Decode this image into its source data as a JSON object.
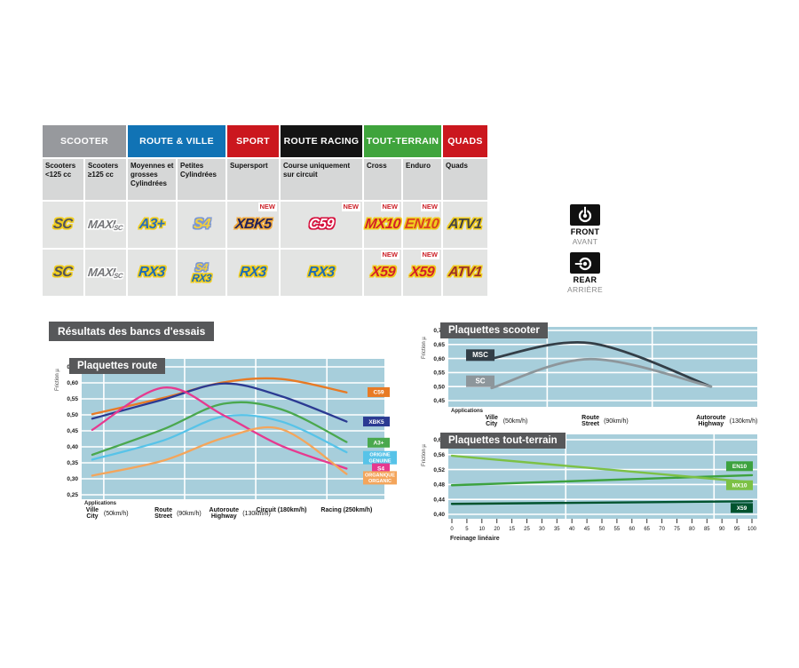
{
  "section_title": "Résultats des bancs d'essais",
  "table": {
    "new_label": "NEW",
    "categories": [
      {
        "label": "SCOOTER",
        "color": "#97999d",
        "span": 2
      },
      {
        "label": "ROUTE & VILLE",
        "color": "#1173b5",
        "span": 2
      },
      {
        "label": "SPORT",
        "color": "#cb171e",
        "span": 1
      },
      {
        "label": "ROUTE RACING",
        "color": "#141414",
        "span": 1
      },
      {
        "label": "TOUT-TERRAIN",
        "color": "#3fa43c",
        "span": 2
      },
      {
        "label": "QUADS",
        "color": "#cb171e",
        "span": 1
      }
    ],
    "subheaders": [
      "Scooters <125 cc",
      "Scooters ≥125 cc",
      "Moyennes et grosses Cylindrées",
      "Petites Cylindrées",
      "Supersport",
      "Course uniquement sur circuit",
      "Cross",
      "Enduro",
      "Quads"
    ],
    "logos": {
      "SC": {
        "text": "SC",
        "cls": "c-sc ol-y"
      },
      "MAXISC": {
        "text": "MAXI",
        "sub": "SC",
        "cls": "c-maxi ol-w"
      },
      "A3": {
        "text": "A3+",
        "cls": "c-a3 ol-y"
      },
      "S4": {
        "text": "S4",
        "cls": "c-s4 ol-b"
      },
      "XBK5": {
        "text": "XBK5",
        "cls": "c-xbk5 ol-o"
      },
      "C59": {
        "text": "C59",
        "cls": "c-c59 ol-r"
      },
      "MX10": {
        "text": "MX10",
        "cls": "c-mx10 ol-y"
      },
      "EN10": {
        "text": "EN10",
        "cls": "c-en10 ol-y"
      },
      "ATV1": {
        "text": "ATV1",
        "cls": "c-atv1 ol-y"
      },
      "ATV1R": {
        "text": "ATV1",
        "cls": "c-atv1r ol-y"
      },
      "RX3": {
        "text": "RX3",
        "cls": "c-rx3 ol-y"
      },
      "X59": {
        "text": "X59",
        "cls": "c-x59 ol-y"
      }
    },
    "rows": [
      {
        "side": "front",
        "cells": [
          {
            "logos": [
              "SC"
            ]
          },
          {
            "logos": [
              "MAXISC"
            ]
          },
          {
            "logos": [
              "A3"
            ]
          },
          {
            "logos": [
              "S4"
            ]
          },
          {
            "logos": [
              "XBK5"
            ],
            "new": true
          },
          {
            "logos": [
              "C59"
            ],
            "new": true
          },
          {
            "logos": [
              "MX10"
            ],
            "new": true
          },
          {
            "logos": [
              "EN10"
            ],
            "new": true
          },
          {
            "logos": [
              "ATV1"
            ]
          }
        ]
      },
      {
        "side": "rear",
        "cells": [
          {
            "logos": [
              "SC"
            ]
          },
          {
            "logos": [
              "MAXISC"
            ]
          },
          {
            "logos": [
              "RX3"
            ]
          },
          {
            "logos": [
              "S4",
              "RX3"
            ]
          },
          {
            "logos": [
              "RX3"
            ]
          },
          {
            "logos": [
              "RX3"
            ]
          },
          {
            "logos": [
              "X59"
            ],
            "new": true
          },
          {
            "logos": [
              "X59"
            ],
            "new": true
          },
          {
            "logos": [
              "ATV1R"
            ]
          }
        ]
      }
    ],
    "sides": {
      "front": {
        "en": "FRONT",
        "fr": "AVANT"
      },
      "rear": {
        "en": "REAR",
        "fr": "ARRIÈRE"
      }
    }
  },
  "chart_data": [
    {
      "id": "route",
      "type": "line",
      "title": "Plaquettes route",
      "ylabel": "Friction µ",
      "x_note": "Applications",
      "ylim": [
        0.25,
        0.65
      ],
      "yticks": [
        "0,65",
        "0,60",
        "0,55",
        "0,50",
        "0,45",
        "0,40",
        "0,35",
        "0,30",
        "0,25"
      ],
      "categories": [
        {
          "l1": "Ville",
          "l2": "City",
          "speed": "(50km/h)"
        },
        {
          "l1": "Route",
          "l2": "Street",
          "speed": "(90km/h)"
        },
        {
          "l1": "Autoroute",
          "l2": "Highway",
          "speed": "(130km/h)"
        },
        {
          "l1": "Circuit",
          "l2": "",
          "speed": "(180km/h)"
        },
        {
          "l1": "Racing",
          "l2": "",
          "speed": "(250km/h)"
        }
      ],
      "series": [
        {
          "name": "C59",
          "color": "#e87a24",
          "values": [
            0.502,
            0.553,
            0.602,
            0.612,
            0.57
          ],
          "label": [
            "C59"
          ],
          "label_y": 0.571
        },
        {
          "name": "XBK5",
          "color": "#2b3a92",
          "values": [
            0.488,
            0.548,
            0.598,
            0.558,
            0.479
          ],
          "label": [
            "XBK5"
          ],
          "label_y": 0.479
        },
        {
          "name": "A3+",
          "color": "#4aa84e",
          "values": [
            0.375,
            0.455,
            0.535,
            0.517,
            0.415
          ],
          "label": [
            "A3+"
          ],
          "label_y": 0.413
        },
        {
          "name": "ORIGINE / GENUINE",
          "color": "#57c3e8",
          "values": [
            0.36,
            0.42,
            0.495,
            0.479,
            0.383
          ],
          "label": [
            "ORIGINE",
            "GENUINE"
          ],
          "label_y": 0.366
        },
        {
          "name": "S4",
          "color": "#e6398f",
          "values": [
            0.453,
            0.585,
            0.498,
            0.403,
            0.332
          ],
          "label": [
            "S4"
          ],
          "label_y": 0.333
        },
        {
          "name": "ORGANIQUE / ORGANIC",
          "color": "#f4a55b",
          "values": [
            0.31,
            0.357,
            0.428,
            0.455,
            0.315
          ],
          "label": [
            "ORGANIQUE",
            "ORGANIC"
          ],
          "label_y": 0.303
        }
      ]
    },
    {
      "id": "scooter",
      "type": "line",
      "title": "Plaquettes scooter",
      "ylabel": "Friction µ",
      "x_note": "Applications",
      "ylim": [
        0.45,
        0.7
      ],
      "yticks": [
        "0,70",
        "0,65",
        "0,60",
        "0,55",
        "0,50",
        "0,45"
      ],
      "categories": [
        {
          "l1": "Ville",
          "l2": "City",
          "speed": "(50km/h)"
        },
        {
          "l1": "Route",
          "l2": "Street",
          "speed": "(90km/h)"
        },
        {
          "l1": "Autoroute",
          "l2": "Highway",
          "speed": "(130km/h)"
        }
      ],
      "series": [
        {
          "name": "MSC",
          "color": "#333e47",
          "values": [
            0.6,
            0.655,
            0.5
          ],
          "label": [
            "MSC"
          ],
          "label_y": 0.612,
          "label_side": "left"
        },
        {
          "name": "SC",
          "color": "#8d969b",
          "values": [
            0.495,
            0.598,
            0.5
          ],
          "label": [
            "SC"
          ],
          "label_y": 0.519,
          "label_side": "left"
        }
      ]
    },
    {
      "id": "tt",
      "type": "line",
      "title": "Plaquettes tout-terrain",
      "ylabel": "Friction µ",
      "xlabel": "Freinage linéaire",
      "ylim": [
        0.4,
        0.6
      ],
      "yticks": [
        "0,60",
        "0,56",
        "0,52",
        "0,48",
        "0,44",
        "0,40"
      ],
      "xticks": [
        "0",
        "5",
        "10",
        "20",
        "15",
        "25",
        "30",
        "35",
        "40",
        "45",
        "50",
        "55",
        "60",
        "65",
        "70",
        "75",
        "80",
        "85",
        "90",
        "95",
        "100"
      ],
      "series": [
        {
          "name": "EN10",
          "color": "#3da23f",
          "x": [
            0,
            100
          ],
          "values": [
            0.478,
            0.505
          ],
          "label": [
            "EN10"
          ],
          "label_y": 0.529
        },
        {
          "name": "MX10",
          "color": "#7cc145",
          "x": [
            0,
            100
          ],
          "values": [
            0.557,
            0.486
          ],
          "label": [
            "MX10"
          ],
          "label_y": 0.478
        },
        {
          "name": "X59",
          "color": "#00532e",
          "x": [
            0,
            100
          ],
          "values": [
            0.428,
            0.435
          ],
          "label": [
            "X59"
          ],
          "label_y": 0.417
        }
      ]
    }
  ]
}
